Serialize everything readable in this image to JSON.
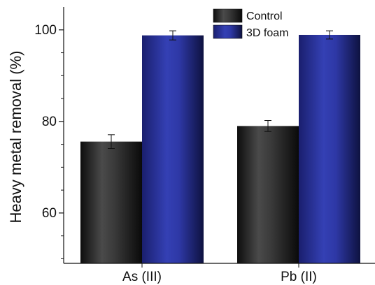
{
  "chart_data": {
    "type": "bar",
    "categories": [
      "As (III)",
      "Pb (II)"
    ],
    "series": [
      {
        "name": "Control",
        "values": [
          75.6,
          79.0
        ],
        "errors": [
          1.5,
          1.2
        ],
        "color": "#2a2a2a"
      },
      {
        "name": "3D foam",
        "values": [
          98.8,
          98.9
        ],
        "errors": [
          1.0,
          0.9
        ],
        "color": "#2b3399"
      }
    ],
    "ylabel": "Heavy metal removal (%)",
    "xlabel": "",
    "ylim": [
      49,
      105
    ],
    "yticks": [
      60,
      80,
      100
    ],
    "y_minor_step": 5,
    "legend_position": "top-right",
    "grid": false
  }
}
